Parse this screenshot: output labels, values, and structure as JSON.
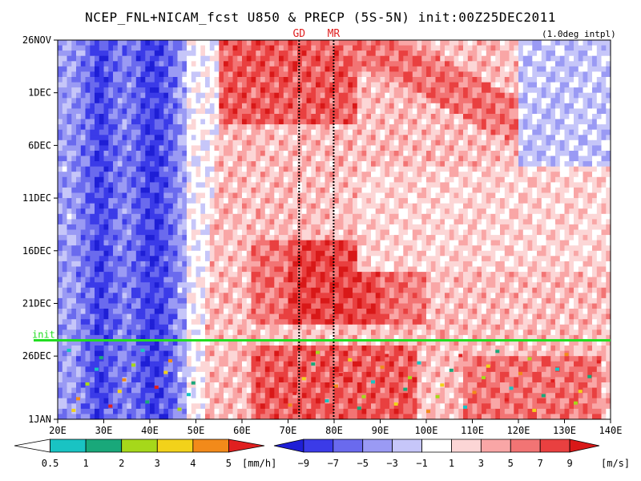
{
  "title": "NCEP_FNL+NICAM_fcst U850 & PRECP (5S-5N) init:00Z25DEC2011",
  "subnote": "(1.0deg intpl)",
  "colors": {
    "u_neg": [
      "#1f1fd6",
      "#3b3be8",
      "#6a6aee",
      "#9a9af4",
      "#c6c6f9"
    ],
    "u_pos": [
      "#ffffff",
      "#fcd6d6",
      "#f9a6a6",
      "#f27474",
      "#e94040",
      "#d91818"
    ],
    "precip": [
      "#ffffff",
      "#19c3c3",
      "#19a87a",
      "#a6d81a",
      "#f2d21a",
      "#f28a1a",
      "#e02020"
    ],
    "init_line": "#22dd22",
    "marker_label": "#e02020"
  },
  "chart_data": {
    "type": "heatmap",
    "title": "NCEP_FNL+NICAM_fcst U850 & PRECP (5S-5N) init:00Z25DEC2011",
    "x": {
      "range": [
        20,
        140
      ],
      "ticks": [
        20,
        30,
        40,
        50,
        60,
        70,
        80,
        90,
        100,
        110,
        120,
        130,
        140
      ],
      "tick_labels": [
        "20E",
        "30E",
        "40E",
        "50E",
        "60E",
        "70E",
        "80E",
        "90E",
        "100E",
        "110E",
        "120E",
        "130E",
        "140E"
      ]
    },
    "y": {
      "range_days": [
        "26NOV",
        "1JAN"
      ],
      "ticks": [
        "26NOV",
        "1DEC",
        "6DEC",
        "11DEC",
        "16DEC",
        "21DEC",
        "26DEC",
        "1JAN"
      ],
      "tick_days": [
        0,
        5,
        10,
        15,
        20,
        25,
        30,
        36
      ]
    },
    "init": {
      "label": "init",
      "date": "25DEC2011"
    },
    "markers": [
      {
        "label": "GD",
        "lon": 72.4
      },
      {
        "label": "MR",
        "lon": 79.9
      }
    ],
    "u850_colorbar": {
      "levels": [
        -9,
        -7,
        -5,
        -3,
        -1,
        1,
        3,
        5,
        7,
        9
      ],
      "tick_labels": [
        "−9",
        "−7",
        "−5",
        "−3",
        "−1",
        "1",
        "3",
        "5",
        "7",
        "9"
      ],
      "unit": "[m/s]"
    },
    "precip_colorbar": {
      "levels": [
        0.5,
        1,
        2,
        3,
        4,
        5
      ],
      "tick_labels": [
        "0.5",
        "1",
        "2",
        "3",
        "4",
        "5"
      ],
      "unit": "[mm/h]"
    }
  }
}
